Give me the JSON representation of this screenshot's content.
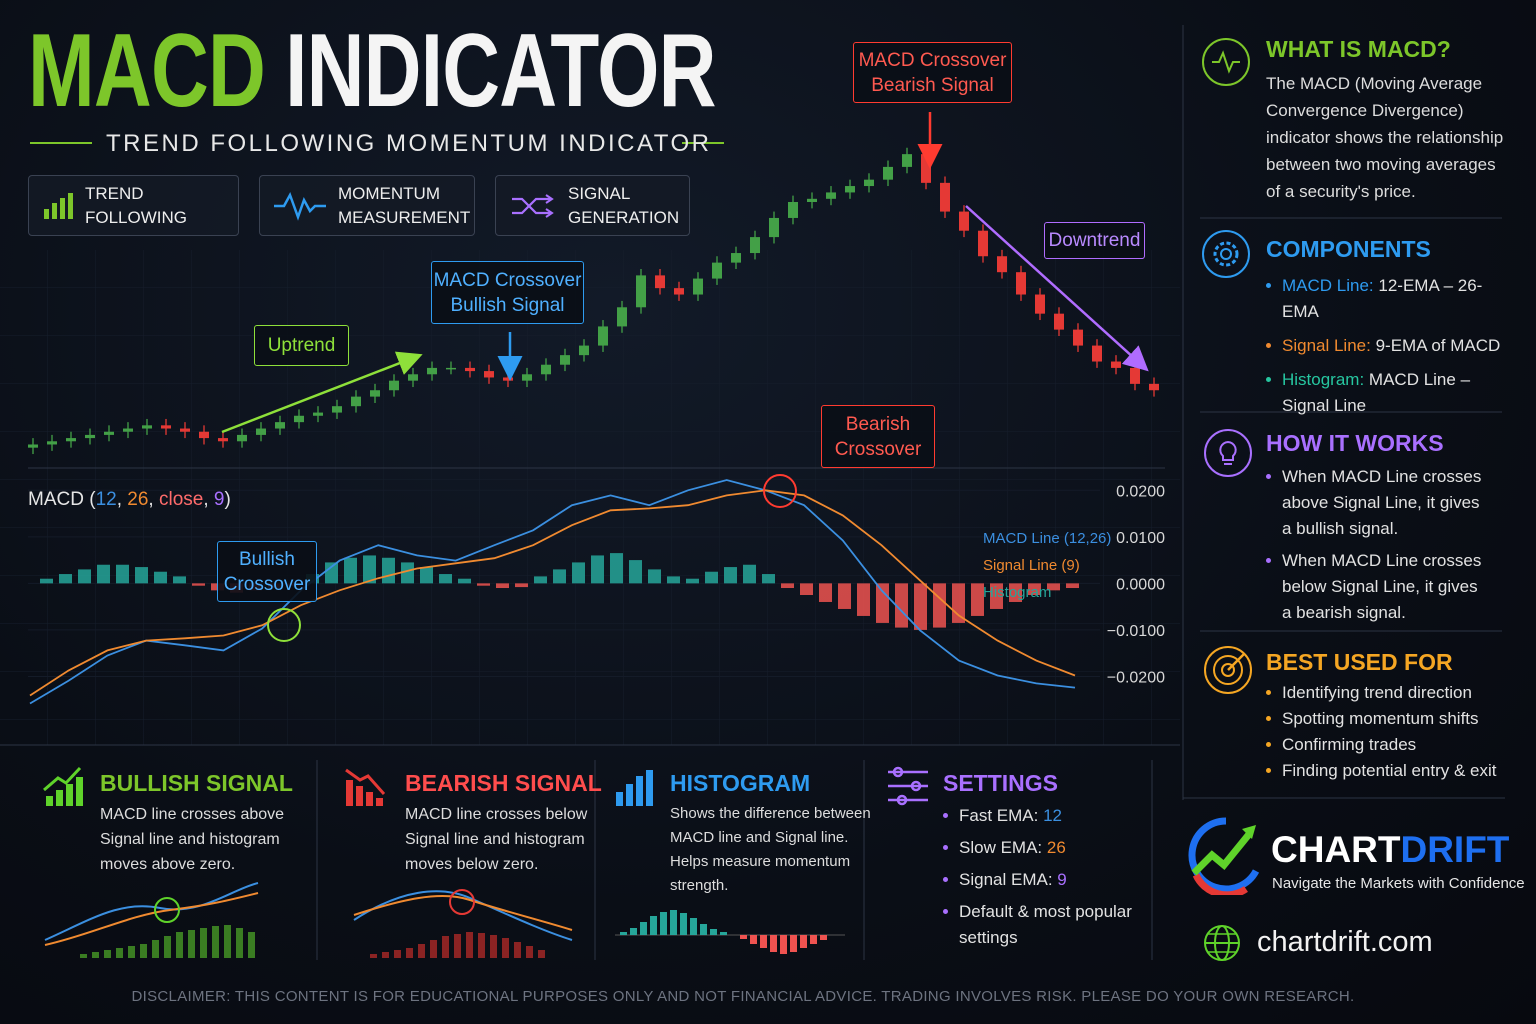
{
  "header": {
    "title_parts": [
      "MACD",
      "INDICATOR"
    ],
    "subtitle": "TREND FOLLOWING MOMENTUM INDICATOR",
    "features": [
      "TREND FOLLOWING",
      "MOMENTUM\nMEASUREMENT",
      "SIGNAL\nGENERATION"
    ]
  },
  "chart_data": [
    {
      "type": "candlestick",
      "up_color": "#43a047",
      "down_color": "#e53935",
      "ylim": [
        -5,
        100
      ],
      "open": [
        2,
        3,
        4,
        5,
        6,
        7,
        8,
        9,
        8,
        7,
        5,
        4,
        6,
        8,
        10,
        12,
        13,
        15,
        18,
        20,
        23,
        25,
        27,
        27,
        26,
        24,
        23,
        25,
        28,
        31,
        34,
        40,
        46,
        56,
        52,
        50,
        55,
        60,
        63,
        68,
        74,
        79,
        80,
        82,
        84,
        86,
        90,
        94,
        85,
        76,
        70,
        62,
        57,
        50,
        44,
        39,
        34,
        29,
        27,
        22
      ],
      "high": [
        5,
        6,
        7,
        8,
        9,
        10,
        11,
        11,
        10,
        9,
        7,
        8,
        10,
        12,
        14,
        15,
        17,
        20,
        22,
        25,
        27,
        29,
        29,
        29,
        28,
        26,
        27,
        30,
        33,
        36,
        42,
        48,
        58,
        58,
        54,
        57,
        62,
        65,
        70,
        76,
        81,
        82,
        84,
        86,
        88,
        92,
        96,
        96,
        87,
        78,
        72,
        64,
        59,
        52,
        46,
        41,
        36,
        31,
        29,
        24
      ],
      "low": [
        0,
        1,
        2,
        3,
        4,
        5,
        6,
        6,
        5,
        3,
        2,
        2,
        4,
        6,
        8,
        10,
        11,
        13,
        16,
        18,
        21,
        23,
        25,
        24,
        22,
        21,
        21,
        23,
        26,
        29,
        32,
        38,
        44,
        50,
        48,
        48,
        53,
        58,
        61,
        66,
        72,
        77,
        78,
        80,
        82,
        84,
        88,
        83,
        74,
        68,
        60,
        55,
        48,
        42,
        37,
        32,
        27,
        25,
        20,
        18
      ],
      "close": [
        3,
        4,
        5,
        6,
        7,
        8,
        9,
        8,
        7,
        5,
        4,
        6,
        8,
        10,
        12,
        13,
        15,
        18,
        20,
        23,
        25,
        27,
        27,
        26,
        24,
        23,
        25,
        28,
        31,
        34,
        40,
        46,
        56,
        52,
        50,
        55,
        60,
        63,
        68,
        74,
        79,
        80,
        82,
        84,
        86,
        90,
        94,
        85,
        76,
        70,
        62,
        57,
        50,
        44,
        39,
        34,
        29,
        27,
        22,
        20
      ],
      "annotations": [
        "MACD Crossover\nBearish Signal",
        "Downtrend",
        "Uptrend",
        "MACD Crossover\nBullish Signal"
      ]
    },
    {
      "type": "line",
      "title_parts": [
        {
          "text": "MACD (",
          "color": "#e6e6e6"
        },
        {
          "text": "12",
          "color": "#3b8fe0"
        },
        {
          "text": ", ",
          "color": "#e6e6e6"
        },
        {
          "text": "26",
          "color": "#f08a30"
        },
        {
          "text": ", ",
          "color": "#e6e6e6"
        },
        {
          "text": "close",
          "color": "#ff6b6b"
        },
        {
          "text": ", ",
          "color": "#e6e6e6"
        },
        {
          "text": "9",
          "color": "#a970ff"
        },
        {
          "text": ")",
          "color": "#e6e6e6"
        }
      ],
      "ylim": [
        -0.03,
        0.025
      ],
      "yticks": [
        {
          "value": 0.02,
          "label": "0.0200"
        },
        {
          "value": 0.01,
          "label": "0.0100"
        },
        {
          "value": 0,
          "label": "0.0000"
        },
        {
          "value": -0.01,
          "label": "−0.0100"
        },
        {
          "value": -0.02,
          "label": "−0.0200"
        }
      ],
      "grid": true,
      "series": [
        {
          "name": "MACD Line (12,26)",
          "color": "#3b8fe0",
          "values": [
            -0.0258,
            -0.0209,
            -0.0155,
            -0.0123,
            -0.0133,
            -0.0144,
            -0.0097,
            -0.0015,
            0.0049,
            0.0082,
            0.006,
            0.0049,
            0.0082,
            0.0114,
            0.0168,
            0.0189,
            0.0168,
            0.02,
            0.0222,
            0.02,
            0.0168,
            0.0092,
            -0.0015,
            -0.0101,
            -0.0166,
            -0.0198,
            -0.0215,
            -0.0224
          ]
        },
        {
          "name": "Signal Line (9)",
          "color": "#f08a30",
          "values": [
            -0.0241,
            -0.0187,
            -0.0144,
            -0.0123,
            -0.0118,
            -0.0112,
            -0.009,
            -0.0047,
            -0.0015,
            0.0011,
            0.0032,
            0.0043,
            0.0054,
            0.0082,
            0.0125,
            0.0157,
            0.0161,
            0.0168,
            0.0189,
            0.02,
            0.0189,
            0.0146,
            0.0082,
            0.0006,
            -0.0069,
            -0.0123,
            -0.0166,
            -0.0198
          ]
        },
        {
          "name": "Histogram",
          "type": "bar",
          "color": "#26a69a",
          "negative_color": "#ef5350",
          "values": [
            0.001,
            0.002,
            0.003,
            0.004,
            0.004,
            0.0035,
            0.0025,
            0.0015,
            -0.0005,
            -0.0015,
            -0.002,
            -0.0015,
            -0.001,
            -0.0005,
            0.002,
            0.0045,
            0.0055,
            0.006,
            0.0055,
            0.0045,
            0.0035,
            0.002,
            0.001,
            -0.0005,
            -0.001,
            -0.0008,
            0.0015,
            0.003,
            0.0045,
            0.006,
            0.0065,
            0.005,
            0.003,
            0.0015,
            0.001,
            0.0025,
            0.0035,
            0.004,
            0.002,
            -0.001,
            -0.0025,
            -0.004,
            -0.0055,
            -0.007,
            -0.0085,
            -0.0095,
            -0.01,
            -0.0095,
            -0.0085,
            -0.007,
            -0.0055,
            -0.004,
            -0.0025,
            -0.0015,
            -0.001
          ]
        }
      ],
      "annotations": [
        "Bearish\nCrossover",
        "Bullish\nCrossover"
      ]
    }
  ],
  "sidebar": [
    {
      "title": "WHAT IS MACD?",
      "body": "The MACD (Moving Average\nConvergence Divergence)\nindicator shows the relationship\nbetween two moving averages\nof a security's price."
    },
    {
      "title": "COMPONENTS",
      "items": [
        {
          "label": "MACD Line:",
          "text": "12-EMA – 26-EMA"
        },
        {
          "label": "Signal Line:",
          "text": "9-EMA of MACD"
        },
        {
          "label": "Histogram:",
          "text": "MACD Line –\nSignal Line"
        }
      ]
    },
    {
      "title": "HOW IT WORKS",
      "items": [
        "When MACD Line crosses\nabove Signal Line, it gives\na bullish signal.",
        "When MACD Line crosses\nbelow Signal Line, it gives\na bearish signal."
      ]
    },
    {
      "title": "BEST USED FOR",
      "items": [
        "Identifying trend direction",
        "Spotting momentum shifts",
        "Confirming trades",
        "Finding potential entry & exit"
      ]
    }
  ],
  "cards": [
    {
      "title": "BULLISH SIGNAL",
      "body": "MACD line crosses above\nSignal line and histogram\nmoves above zero."
    },
    {
      "title": "BEARISH SIGNAL",
      "body": "MACD line crosses below\nSignal line and histogram\nmoves below zero."
    },
    {
      "title": "HISTOGRAM",
      "body": "Shows the difference between\nMACD line and Signal line.\nHelps measure momentum\nstrength."
    },
    {
      "title": "SETTINGS",
      "items": [
        {
          "label": "Fast EMA:",
          "value": "12"
        },
        {
          "label": "Slow EMA:",
          "value": "26"
        },
        {
          "label": "Signal EMA:",
          "value": "9"
        },
        {
          "label": "Default & most popular\nsettings"
        }
      ]
    }
  ],
  "brand": {
    "brand_parts": [
      "CHART",
      "DRIFT"
    ],
    "tagline": "Navigate the Markets with Confidence",
    "website": "chartdrift.com"
  },
  "disclaimer": "DISCLAIMER: THIS CONTENT IS FOR EDUCATIONAL PURPOSES ONLY AND NOT FINANCIAL ADVICE. TRADING INVOLVES RISK. PLEASE DO YOUR OWN RESEARCH."
}
